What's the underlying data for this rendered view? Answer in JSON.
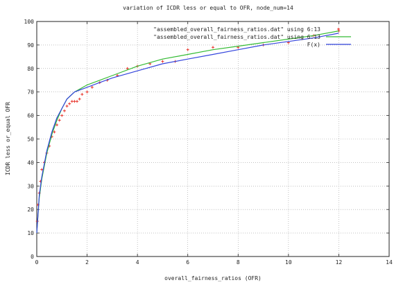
{
  "chart_data": {
    "type": "scatter",
    "title": "variation of ICDR less or equal to OFR, node_num=14",
    "xlabel": "overall_fairness_ratios (OFR)",
    "ylabel": "ICDR less or_equal OFR",
    "xlim": [
      0,
      14
    ],
    "ylim": [
      0,
      100
    ],
    "x_ticks": [
      0,
      2,
      4,
      6,
      8,
      10,
      12,
      14
    ],
    "y_ticks": [
      0,
      10,
      20,
      30,
      40,
      50,
      60,
      70,
      80,
      90,
      100
    ],
    "grid": true,
    "legend_position": "top-right",
    "series": [
      {
        "name": "\"assembled_overall_fairness_ratios.dat\" using 6:13",
        "kind": "points",
        "color": "#e8332a",
        "x": [
          0.02,
          0.05,
          0.1,
          0.15,
          0.2,
          0.3,
          0.4,
          0.5,
          0.6,
          0.7,
          0.8,
          0.9,
          1.0,
          1.1,
          1.2,
          1.3,
          1.4,
          1.5,
          1.6,
          1.7,
          1.8,
          2.0,
          2.2,
          2.5,
          2.8,
          3.2,
          3.6,
          4.0,
          4.5,
          5.0,
          5.5,
          6.0,
          7.0,
          8.0,
          9.0,
          10.0,
          11.0,
          12.0
        ],
        "y": [
          15,
          22,
          27,
          32,
          37,
          40,
          44,
          47,
          51,
          53,
          56,
          58,
          60,
          62,
          64,
          65,
          66,
          66,
          66,
          67,
          69,
          70,
          72,
          74,
          75,
          77,
          80,
          81,
          82,
          83,
          83,
          88,
          89,
          89,
          90,
          91,
          94,
          96
        ]
      },
      {
        "name": "\"assembled_overall_fairness_ratios.dat\" using 6:13",
        "kind": "line",
        "color": "#33bb33",
        "x": [
          0,
          0.1,
          0.2,
          0.4,
          0.6,
          0.8,
          1.0,
          1.2,
          1.5,
          2.0,
          2.5,
          3.0,
          4.0,
          5.0,
          6.0,
          7.0,
          8.0,
          9.0,
          10.0,
          11.0,
          12.0
        ],
        "y": [
          10,
          25,
          33,
          44,
          52,
          58,
          63,
          67,
          70,
          73,
          75,
          77,
          81,
          84,
          86,
          88,
          89.5,
          91,
          92.5,
          94,
          96
        ]
      },
      {
        "name": "F(x)",
        "kind": "line",
        "color": "#3344dd",
        "x": [
          0,
          0.1,
          0.2,
          0.4,
          0.6,
          0.8,
          1.0,
          1.2,
          1.5,
          2.0,
          2.5,
          3.0,
          4.0,
          5.0,
          6.0,
          7.0,
          8.0,
          9.0,
          10.0,
          11.0,
          12.0
        ],
        "y": [
          10,
          26,
          34,
          45,
          53,
          59,
          63,
          67,
          70,
          72,
          74,
          76,
          79,
          82,
          84,
          86,
          88,
          90,
          91.5,
          93,
          95
        ]
      }
    ]
  }
}
